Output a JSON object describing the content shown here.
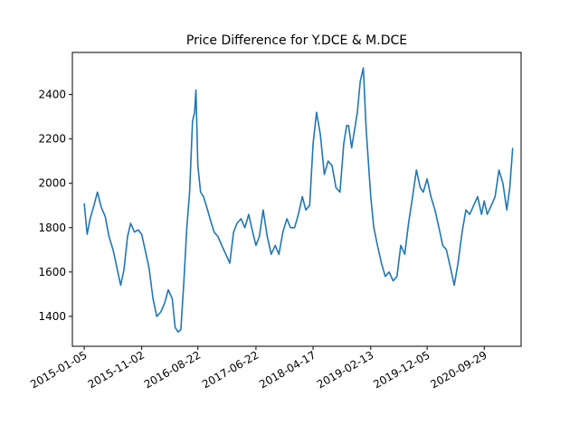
{
  "chart_data": {
    "type": "line",
    "title": "Price Difference for Y.DCE & M.DCE",
    "xlabel": "",
    "ylabel": "",
    "grid": false,
    "line_color": "#1f77b4",
    "x_ticks": [
      "2015-01-05",
      "2015-11-02",
      "2016-08-22",
      "2017-06-22",
      "2018-04-17",
      "2019-02-13",
      "2019-12-05",
      "2020-09-29"
    ],
    "xlim": [
      "2014-11-04",
      "2021-04-10"
    ],
    "y_ticks": [
      1400,
      1600,
      1800,
      2000,
      2200,
      2400
    ],
    "ylim": [
      1265,
      2590
    ],
    "series": [
      {
        "name": "",
        "x": [
          "2015-01-05",
          "2015-01-20",
          "2015-02-05",
          "2015-02-25",
          "2015-03-15",
          "2015-04-05",
          "2015-04-25",
          "2015-05-15",
          "2015-06-05",
          "2015-06-25",
          "2015-07-15",
          "2015-08-01",
          "2015-08-20",
          "2015-09-05",
          "2015-09-25",
          "2015-10-15",
          "2015-11-02",
          "2015-11-20",
          "2015-12-10",
          "2015-12-31",
          "2016-01-20",
          "2016-02-10",
          "2016-03-01",
          "2016-03-20",
          "2016-04-10",
          "2016-04-25",
          "2016-05-10",
          "2016-05-25",
          "2016-06-10",
          "2016-06-25",
          "2016-07-10",
          "2016-07-25",
          "2016-08-05",
          "2016-08-12",
          "2016-08-22",
          "2016-09-05",
          "2016-09-20",
          "2016-10-05",
          "2016-10-25",
          "2016-11-15",
          "2016-12-05",
          "2016-12-25",
          "2017-01-15",
          "2017-02-05",
          "2017-02-25",
          "2017-03-15",
          "2017-04-05",
          "2017-04-25",
          "2017-05-15",
          "2017-06-05",
          "2017-06-22",
          "2017-07-10",
          "2017-07-30",
          "2017-08-20",
          "2017-09-10",
          "2017-10-01",
          "2017-10-20",
          "2017-11-10",
          "2017-12-01",
          "2017-12-20",
          "2018-01-10",
          "2018-01-30",
          "2018-02-20",
          "2018-03-10",
          "2018-03-30",
          "2018-04-17",
          "2018-05-05",
          "2018-05-25",
          "2018-06-15",
          "2018-07-05",
          "2018-07-25",
          "2018-08-15",
          "2018-09-05",
          "2018-09-25",
          "2018-10-10",
          "2018-10-20",
          "2018-11-05",
          "2018-11-20",
          "2018-12-05",
          "2018-12-20",
          "2019-01-05",
          "2019-01-20",
          "2019-02-13",
          "2019-03-01",
          "2019-03-20",
          "2019-04-10",
          "2019-04-30",
          "2019-05-20",
          "2019-06-10",
          "2019-06-30",
          "2019-07-20",
          "2019-08-10",
          "2019-08-30",
          "2019-09-20",
          "2019-10-10",
          "2019-10-30",
          "2019-11-15",
          "2019-12-05",
          "2019-12-25",
          "2020-01-15",
          "2020-02-05",
          "2020-02-25",
          "2020-03-15",
          "2020-04-05",
          "2020-04-25",
          "2020-05-15",
          "2020-06-05",
          "2020-06-25",
          "2020-07-15",
          "2020-08-05",
          "2020-08-25",
          "2020-09-15",
          "2020-09-29",
          "2020-10-15",
          "2020-11-05",
          "2020-11-25",
          "2020-12-15",
          "2021-01-05",
          "2021-01-25",
          "2021-02-10",
          "2021-02-25"
        ],
        "y": [
          1910,
          1770,
          1840,
          1900,
          1960,
          1890,
          1850,
          1760,
          1700,
          1620,
          1540,
          1610,
          1760,
          1820,
          1780,
          1790,
          1770,
          1700,
          1620,
          1480,
          1400,
          1420,
          1460,
          1520,
          1480,
          1350,
          1330,
          1340,
          1560,
          1800,
          1960,
          2280,
          2320,
          2420,
          2080,
          1960,
          1940,
          1900,
          1840,
          1780,
          1760,
          1720,
          1680,
          1640,
          1780,
          1820,
          1840,
          1800,
          1860,
          1780,
          1720,
          1760,
          1880,
          1760,
          1680,
          1720,
          1680,
          1780,
          1840,
          1800,
          1800,
          1860,
          1940,
          1880,
          1900,
          2180,
          2320,
          2220,
          2040,
          2100,
          2080,
          1980,
          1960,
          2180,
          2260,
          2260,
          2160,
          2240,
          2320,
          2460,
          2520,
          2240,
          1940,
          1800,
          1720,
          1640,
          1580,
          1600,
          1560,
          1580,
          1720,
          1680,
          1820,
          1940,
          2060,
          1980,
          1960,
          2020,
          1940,
          1880,
          1800,
          1720,
          1700,
          1620,
          1540,
          1640,
          1780,
          1880,
          1860,
          1900,
          1940,
          1860,
          1920,
          1860,
          1900,
          1940,
          2060,
          2000,
          1880,
          1980,
          2160
        ]
      }
    ]
  }
}
